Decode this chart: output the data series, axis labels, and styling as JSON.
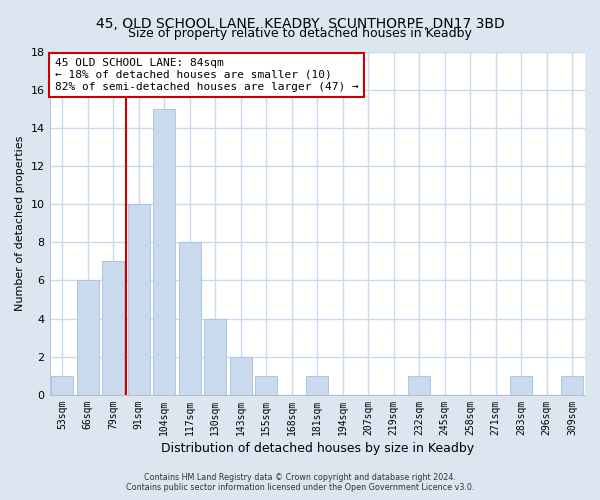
{
  "title": "45, OLD SCHOOL LANE, KEADBY, SCUNTHORPE, DN17 3BD",
  "subtitle": "Size of property relative to detached houses in Keadby",
  "xlabel": "Distribution of detached houses by size in Keadby",
  "ylabel": "Number of detached properties",
  "bar_labels": [
    "53sqm",
    "66sqm",
    "79sqm",
    "91sqm",
    "104sqm",
    "117sqm",
    "130sqm",
    "143sqm",
    "155sqm",
    "168sqm",
    "181sqm",
    "194sqm",
    "207sqm",
    "219sqm",
    "232sqm",
    "245sqm",
    "258sqm",
    "271sqm",
    "283sqm",
    "296sqm",
    "309sqm"
  ],
  "bar_values": [
    1,
    6,
    7,
    10,
    15,
    8,
    4,
    2,
    1,
    0,
    1,
    0,
    0,
    0,
    1,
    0,
    0,
    0,
    1,
    0,
    1
  ],
  "bar_color": "#c9d9ee",
  "bar_edge_color": "#aec4e0",
  "grid_color": "#c9d9ee",
  "plot_bg_color": "#ffffff",
  "fig_bg_color": "#dce6f1",
  "ylim": [
    0,
    18
  ],
  "yticks": [
    0,
    2,
    4,
    6,
    8,
    10,
    12,
    14,
    16,
    18
  ],
  "red_line_index": 2.5,
  "annotation_box_text": "45 OLD SCHOOL LANE: 84sqm\n← 18% of detached houses are smaller (10)\n82% of semi-detached houses are larger (47) →",
  "footer_line1": "Contains HM Land Registry data © Crown copyright and database right 2024.",
  "footer_line2": "Contains public sector information licensed under the Open Government Licence v3.0."
}
